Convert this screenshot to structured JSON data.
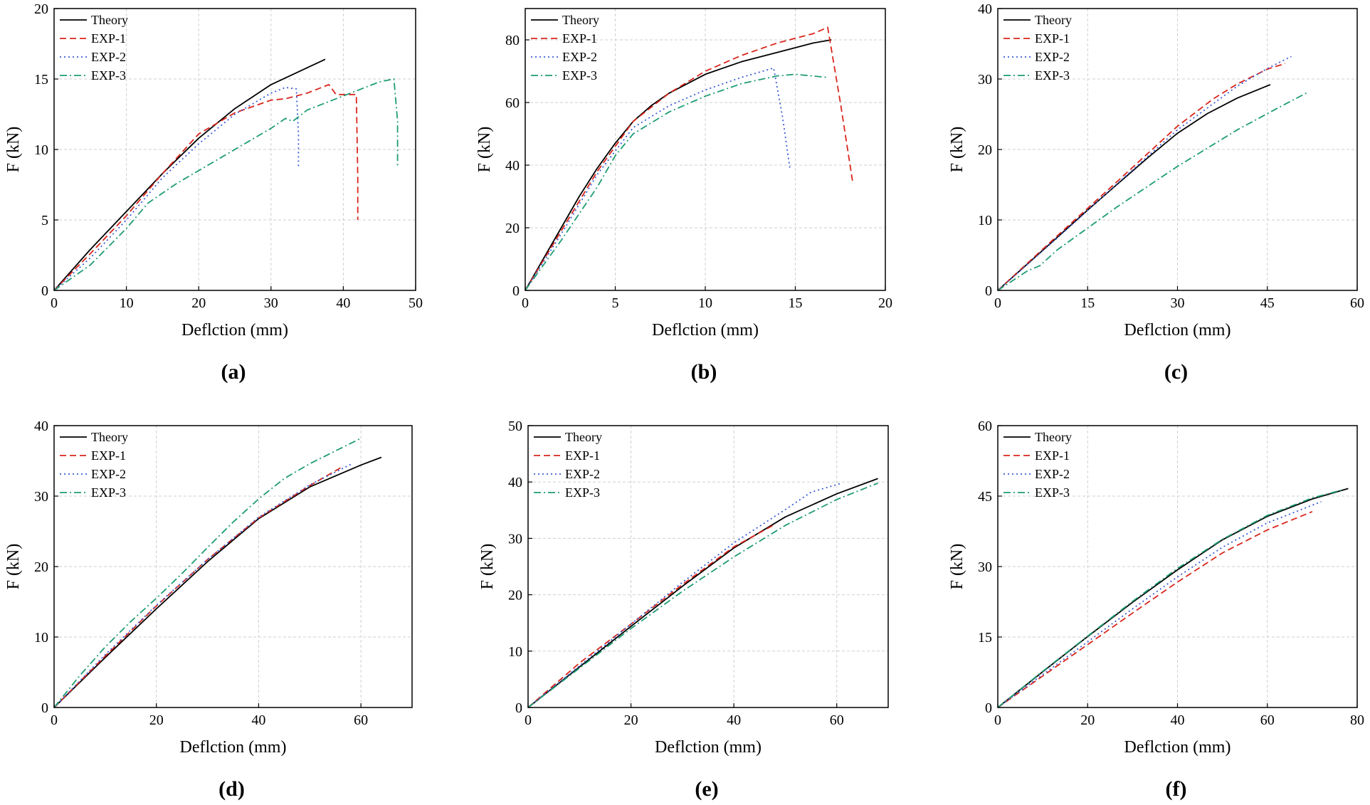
{
  "colors": {
    "Theory": "#000000",
    "EXP-1": "#d9261c",
    "EXP-2": "#3b5bd6",
    "EXP-3": "#1e9c74"
  },
  "chart_data": [
    {
      "type": "line",
      "panel_label": "(a)",
      "xlabel": "Deflction (mm)",
      "ylabel": "F (kN)",
      "xlim": [
        0,
        50
      ],
      "ylim": [
        0,
        20
      ],
      "xticks": [
        0,
        10,
        20,
        30,
        40,
        50
      ],
      "yticks": [
        0,
        5,
        10,
        15,
        20
      ],
      "grid": true,
      "legend": "top-left",
      "series": [
        {
          "name": "Theory",
          "x": [
            0,
            5,
            10,
            15,
            20,
            25,
            30,
            35,
            37.5
          ],
          "y": [
            0,
            2.9,
            5.6,
            8.3,
            10.8,
            12.9,
            14.6,
            15.8,
            16.4
          ]
        },
        {
          "name": "EXP-1",
          "x": [
            0,
            5,
            10,
            15,
            20,
            25,
            30,
            32,
            35,
            38,
            39,
            41.8,
            42,
            42
          ],
          "y": [
            0,
            2.6,
            5.3,
            8.3,
            11.1,
            12.6,
            13.5,
            13.6,
            14.0,
            14.6,
            13.9,
            13.9,
            8.0,
            5.0
          ]
        },
        {
          "name": "EXP-2",
          "x": [
            0,
            5,
            10,
            15,
            20,
            25,
            30,
            32,
            33.5,
            33.8,
            33.8
          ],
          "y": [
            0,
            2.3,
            5.0,
            8.0,
            10.4,
            12.5,
            14.0,
            14.4,
            14.3,
            11.0,
            8.8
          ]
        },
        {
          "name": "EXP-3",
          "x": [
            0,
            5,
            10,
            13,
            17,
            20,
            25,
            30,
            32,
            33,
            35,
            40,
            45,
            47,
            47.5,
            47.5
          ],
          "y": [
            0,
            1.8,
            4.4,
            6.2,
            7.6,
            8.5,
            10.0,
            11.5,
            12.2,
            12.0,
            12.8,
            13.8,
            14.8,
            15.0,
            12.0,
            8.8
          ]
        }
      ]
    },
    {
      "type": "line",
      "panel_label": "(b)",
      "xlabel": "Deflction (mm)",
      "ylabel": "F (kN)",
      "xlim": [
        0,
        20
      ],
      "ylim": [
        0,
        90
      ],
      "xticks": [
        0,
        5,
        10,
        15,
        20
      ],
      "yticks": [
        0,
        20,
        40,
        60,
        80
      ],
      "grid": true,
      "legend": "top-left",
      "series": [
        {
          "name": "Theory",
          "x": [
            0,
            1,
            2,
            3,
            4,
            5,
            6,
            7,
            8,
            10,
            12,
            14,
            16,
            17
          ],
          "y": [
            0,
            10,
            20,
            30,
            39,
            47,
            54,
            59,
            63,
            69,
            73,
            76,
            79,
            80
          ]
        },
        {
          "name": "EXP-1",
          "x": [
            0,
            2,
            4,
            6,
            8,
            10,
            12,
            14,
            16,
            16.8,
            17.5,
            18.2
          ],
          "y": [
            0,
            19,
            38,
            54,
            63,
            70,
            75,
            79,
            82,
            84,
            60,
            34
          ]
        },
        {
          "name": "EXP-2",
          "x": [
            0,
            2,
            4,
            6,
            8,
            10,
            12,
            13.8,
            14.3,
            14.7
          ],
          "y": [
            0,
            18,
            37,
            52,
            59,
            64,
            68,
            71,
            55,
            39
          ]
        },
        {
          "name": "EXP-3",
          "x": [
            0,
            2,
            4,
            5,
            6,
            8,
            10,
            12,
            14,
            15,
            16.8
          ],
          "y": [
            0,
            16,
            33,
            43,
            50,
            57,
            62,
            66,
            68.5,
            69,
            68
          ]
        }
      ]
    },
    {
      "type": "line",
      "panel_label": "(c)",
      "xlabel": "Deflction (mm)",
      "ylabel": "F (kN)",
      "xlim": [
        0,
        60
      ],
      "ylim": [
        0,
        40
      ],
      "xticks": [
        0,
        15,
        30,
        45,
        60
      ],
      "yticks": [
        0,
        10,
        20,
        30,
        40
      ],
      "grid": true,
      "legend": "top-left",
      "series": [
        {
          "name": "Theory",
          "x": [
            0,
            5,
            10,
            15,
            20,
            25,
            30,
            35,
            40,
            45.5
          ],
          "y": [
            0,
            3.8,
            7.6,
            11.4,
            15.1,
            18.8,
            22.3,
            25.1,
            27.3,
            29.2
          ]
        },
        {
          "name": "EXP-1",
          "x": [
            0,
            10,
            20,
            30,
            36,
            40,
            45,
            48
          ],
          "y": [
            0,
            7.8,
            15.5,
            23.3,
            27.2,
            29.3,
            31.4,
            32.2
          ]
        },
        {
          "name": "EXP-2",
          "x": [
            0,
            10,
            20,
            30,
            40,
            45,
            49
          ],
          "y": [
            0,
            7.5,
            15.2,
            22.8,
            29.0,
            31.5,
            33.2
          ]
        },
        {
          "name": "EXP-3",
          "x": [
            0,
            5,
            7,
            10,
            20,
            30,
            40,
            47,
            51.5
          ],
          "y": [
            0,
            2.8,
            3.5,
            5.8,
            11.9,
            17.6,
            22.8,
            26.0,
            28.0
          ]
        }
      ]
    },
    {
      "type": "line",
      "panel_label": "(d)",
      "xlabel": "Deflction (mm)",
      "ylabel": "F (kN)",
      "xlim": [
        0,
        70
      ],
      "ylim": [
        0,
        40
      ],
      "xticks": [
        0,
        20,
        40,
        60
      ],
      "yticks": [
        0,
        10,
        20,
        30,
        40
      ],
      "grid": true,
      "legend": "top-left",
      "series": [
        {
          "name": "Theory",
          "x": [
            0,
            10,
            20,
            30,
            40,
            50,
            60,
            64
          ],
          "y": [
            0,
            7.1,
            14.0,
            20.7,
            26.8,
            31.3,
            34.4,
            35.5
          ]
        },
        {
          "name": "EXP-1",
          "x": [
            0,
            10,
            20,
            30,
            40,
            50,
            56
          ],
          "y": [
            0,
            7.3,
            14.4,
            21.0,
            26.9,
            31.5,
            34.0
          ]
        },
        {
          "name": "EXP-2",
          "x": [
            0,
            10,
            20,
            30,
            40,
            50,
            58
          ],
          "y": [
            0,
            7.5,
            14.5,
            21.0,
            27.0,
            31.6,
            34.5
          ]
        },
        {
          "name": "EXP-3",
          "x": [
            0,
            5,
            10,
            15,
            20,
            25,
            30,
            35,
            40,
            45,
            50,
            55,
            60
          ],
          "y": [
            0,
            4.5,
            8.6,
            12.2,
            15.5,
            19.0,
            22.7,
            26.3,
            29.6,
            32.5,
            34.6,
            36.4,
            38.2
          ]
        }
      ]
    },
    {
      "type": "line",
      "panel_label": "(e)",
      "xlabel": "Deflction (mm)",
      "ylabel": "F (kN)",
      "xlim": [
        0,
        70
      ],
      "ylim": [
        0,
        50
      ],
      "xticks": [
        0,
        20,
        40,
        60
      ],
      "yticks": [
        0,
        10,
        20,
        30,
        40,
        50
      ],
      "grid": true,
      "legend": "top-left",
      "series": [
        {
          "name": "Theory",
          "x": [
            0,
            10,
            20,
            30,
            40,
            50,
            60,
            68
          ],
          "y": [
            0,
            7.2,
            14.4,
            21.5,
            28.3,
            33.8,
            37.9,
            40.6
          ]
        },
        {
          "name": "EXP-1",
          "x": [
            0,
            10,
            20,
            30,
            40,
            48
          ],
          "y": [
            0,
            7.9,
            14.8,
            21.8,
            28.5,
            32.5
          ]
        },
        {
          "name": "EXP-2",
          "x": [
            0,
            10,
            20,
            30,
            40,
            50,
            55,
            61
          ],
          "y": [
            0,
            7.4,
            14.8,
            22.2,
            29.2,
            35.1,
            38.2,
            39.8
          ]
        },
        {
          "name": "EXP-3",
          "x": [
            0,
            10,
            20,
            30,
            40,
            50,
            60,
            68
          ],
          "y": [
            0,
            7.0,
            14.0,
            20.6,
            26.7,
            32.3,
            36.9,
            39.8
          ]
        }
      ]
    },
    {
      "type": "line",
      "panel_label": "(f)",
      "xlabel": "Deflction (mm)",
      "ylabel": "F (kN)",
      "xlim": [
        0,
        80
      ],
      "ylim": [
        0,
        60
      ],
      "xticks": [
        0,
        20,
        40,
        60,
        80
      ],
      "yticks": [
        0,
        15,
        30,
        45,
        60
      ],
      "grid": true,
      "legend": "top-left",
      "series": [
        {
          "name": "Theory",
          "x": [
            0,
            10,
            20,
            30,
            40,
            50,
            60,
            70,
            78
          ],
          "y": [
            0,
            7.6,
            15.1,
            22.4,
            29.3,
            35.7,
            40.7,
            44.4,
            46.6
          ]
        },
        {
          "name": "EXP-1",
          "x": [
            0,
            10,
            20,
            30,
            40,
            50,
            60,
            70
          ],
          "y": [
            0,
            6.7,
            13.4,
            20.1,
            26.7,
            32.9,
            37.8,
            41.7
          ]
        },
        {
          "name": "EXP-2",
          "x": [
            0,
            10,
            20,
            30,
            40,
            50,
            60,
            72
          ],
          "y": [
            0,
            7.0,
            14.0,
            21.0,
            27.8,
            34.1,
            39.3,
            43.8
          ]
        },
        {
          "name": "EXP-3",
          "x": [
            0,
            10,
            20,
            30,
            40,
            50,
            60,
            70,
            77
          ],
          "y": [
            0,
            7.7,
            15.2,
            22.6,
            29.6,
            35.8,
            40.9,
            44.6,
            46.4
          ]
        }
      ]
    }
  ]
}
